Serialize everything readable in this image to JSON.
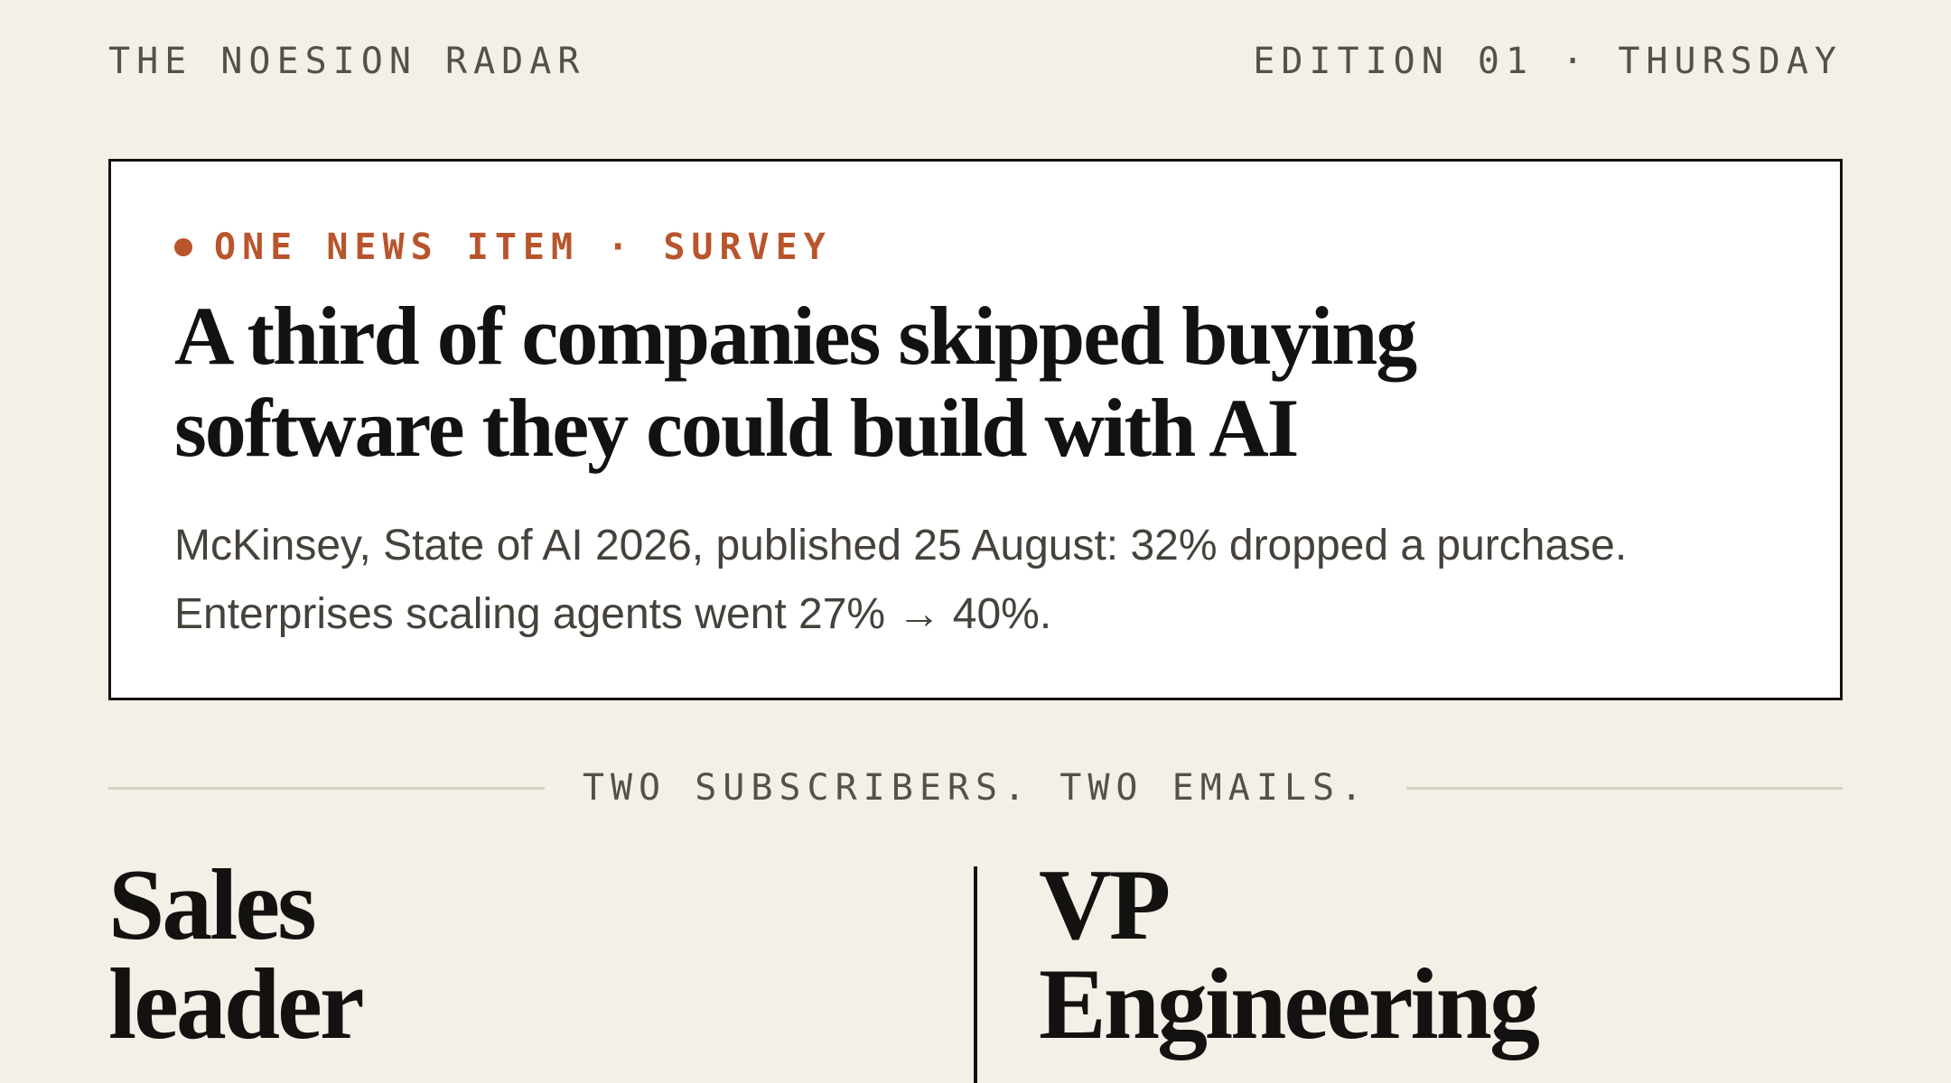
{
  "masthead": {
    "brand": "THE NOESION RADAR",
    "edition": "EDITION 01 · THURSDAY"
  },
  "news_item": {
    "kicker": "ONE NEWS ITEM · SURVEY",
    "headline_line1": "A third of companies skipped buying",
    "headline_line2": "software they could build with AI",
    "deck_line1": "McKinsey, State of AI 2026, published 25 August: 32% dropped a purchase.",
    "deck_line2": "Enterprises scaling agents went 27% → 40%."
  },
  "section_divider": {
    "label": "TWO SUBSCRIBERS. TWO EMAILS."
  },
  "subscribers": [
    {
      "line1": "Sales",
      "line2": "leader"
    },
    {
      "line1": "VP",
      "line2": "Engineering"
    }
  ],
  "colors": {
    "background": "#f4f0e8",
    "accent": "#b8552c",
    "ink": "#141210",
    "muted": "#55514a"
  }
}
